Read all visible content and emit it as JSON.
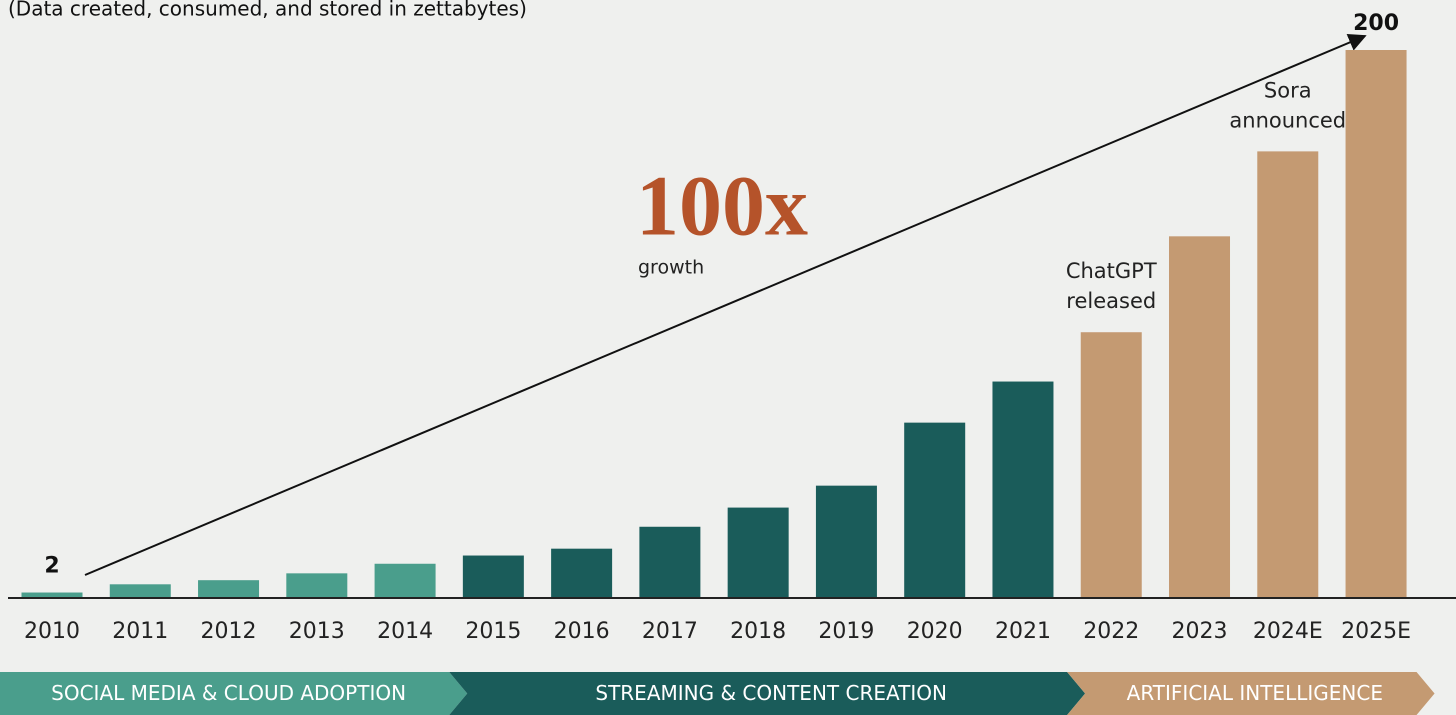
{
  "chart_data": {
    "type": "bar",
    "subtitle": "(Data created, consumed, and stored in zettabytes)",
    "categories": [
      "2010",
      "2011",
      "2012",
      "2013",
      "2014",
      "2015",
      "2016",
      "2017",
      "2018",
      "2019",
      "2020",
      "2021",
      "2022",
      "2023",
      "2024E",
      "2025E"
    ],
    "values": [
      2,
      5,
      6.5,
      9,
      12.5,
      15.5,
      18,
      26,
      33,
      41,
      64,
      79,
      97,
      132,
      163,
      200
    ],
    "colors": [
      "#4a9e8c",
      "#4a9e8c",
      "#4a9e8c",
      "#4a9e8c",
      "#4a9e8c",
      "#1a5c5a",
      "#1a5c5a",
      "#1a5c5a",
      "#1a5c5a",
      "#1a5c5a",
      "#1a5c5a",
      "#1a5c5a",
      "#c49a72",
      "#c49a72",
      "#c49a72",
      "#c49a72"
    ],
    "ylim": [
      0,
      200
    ],
    "growth": {
      "value": "100x",
      "label": "growth"
    },
    "annotations": [
      {
        "category": "2022",
        "lines": [
          "ChatGPT",
          "released"
        ]
      },
      {
        "category": "2024E",
        "lines": [
          "Sora",
          "announced"
        ]
      }
    ],
    "phases": [
      {
        "label": "SOCIAL MEDIA & CLOUD ADOPTION",
        "from": "2010",
        "to": "2014",
        "color": "#4a9e8c"
      },
      {
        "label": "STREAMING & CONTENT CREATION",
        "from": "2015",
        "to": "2021",
        "color": "#1a5c5a"
      },
      {
        "label": "ARTIFICIAL INTELLIGENCE",
        "from": "2022",
        "to": "2025E",
        "color": "#c49a72"
      }
    ]
  }
}
